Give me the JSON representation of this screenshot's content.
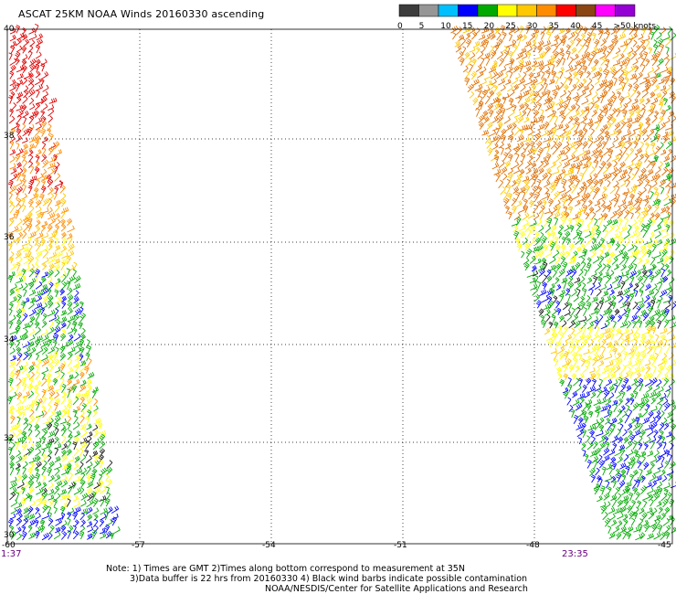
{
  "title": "ASCAT 25KM NOAA Winds 20160330 ascending",
  "legend": {
    "colors": [
      "#3c3c3c",
      "#969696",
      "#00bfff",
      "#0000ff",
      "#00aa00",
      "#ffff00",
      "#ffc800",
      "#ff8c00",
      "#ff0000",
      "#8b4513",
      "#ff00ff",
      "#9400d3"
    ],
    "labels": [
      "0",
      "5",
      "10",
      "15",
      "20",
      "25",
      "30",
      "35",
      "40",
      "45",
      ">50 knots"
    ]
  },
  "axes": {
    "longitudes": [
      "-60",
      "-57",
      "-54",
      "-51",
      "-48",
      "-45"
    ],
    "latitudes": [
      "40",
      "38",
      "36",
      "34",
      "32",
      "30"
    ]
  },
  "times": {
    "left": "1:37",
    "right": "23:35"
  },
  "notes": {
    "line1": "Note: 1) Times are GMT 2)Times along bottom correspond to measurement at 35N",
    "line2": "3)Data buffer is 22 hrs from 20160330 4) Black wind barbs indicate possible contamination",
    "line3": "NOAA/NESDIS/Center for Satellite Applications and Research"
  }
}
